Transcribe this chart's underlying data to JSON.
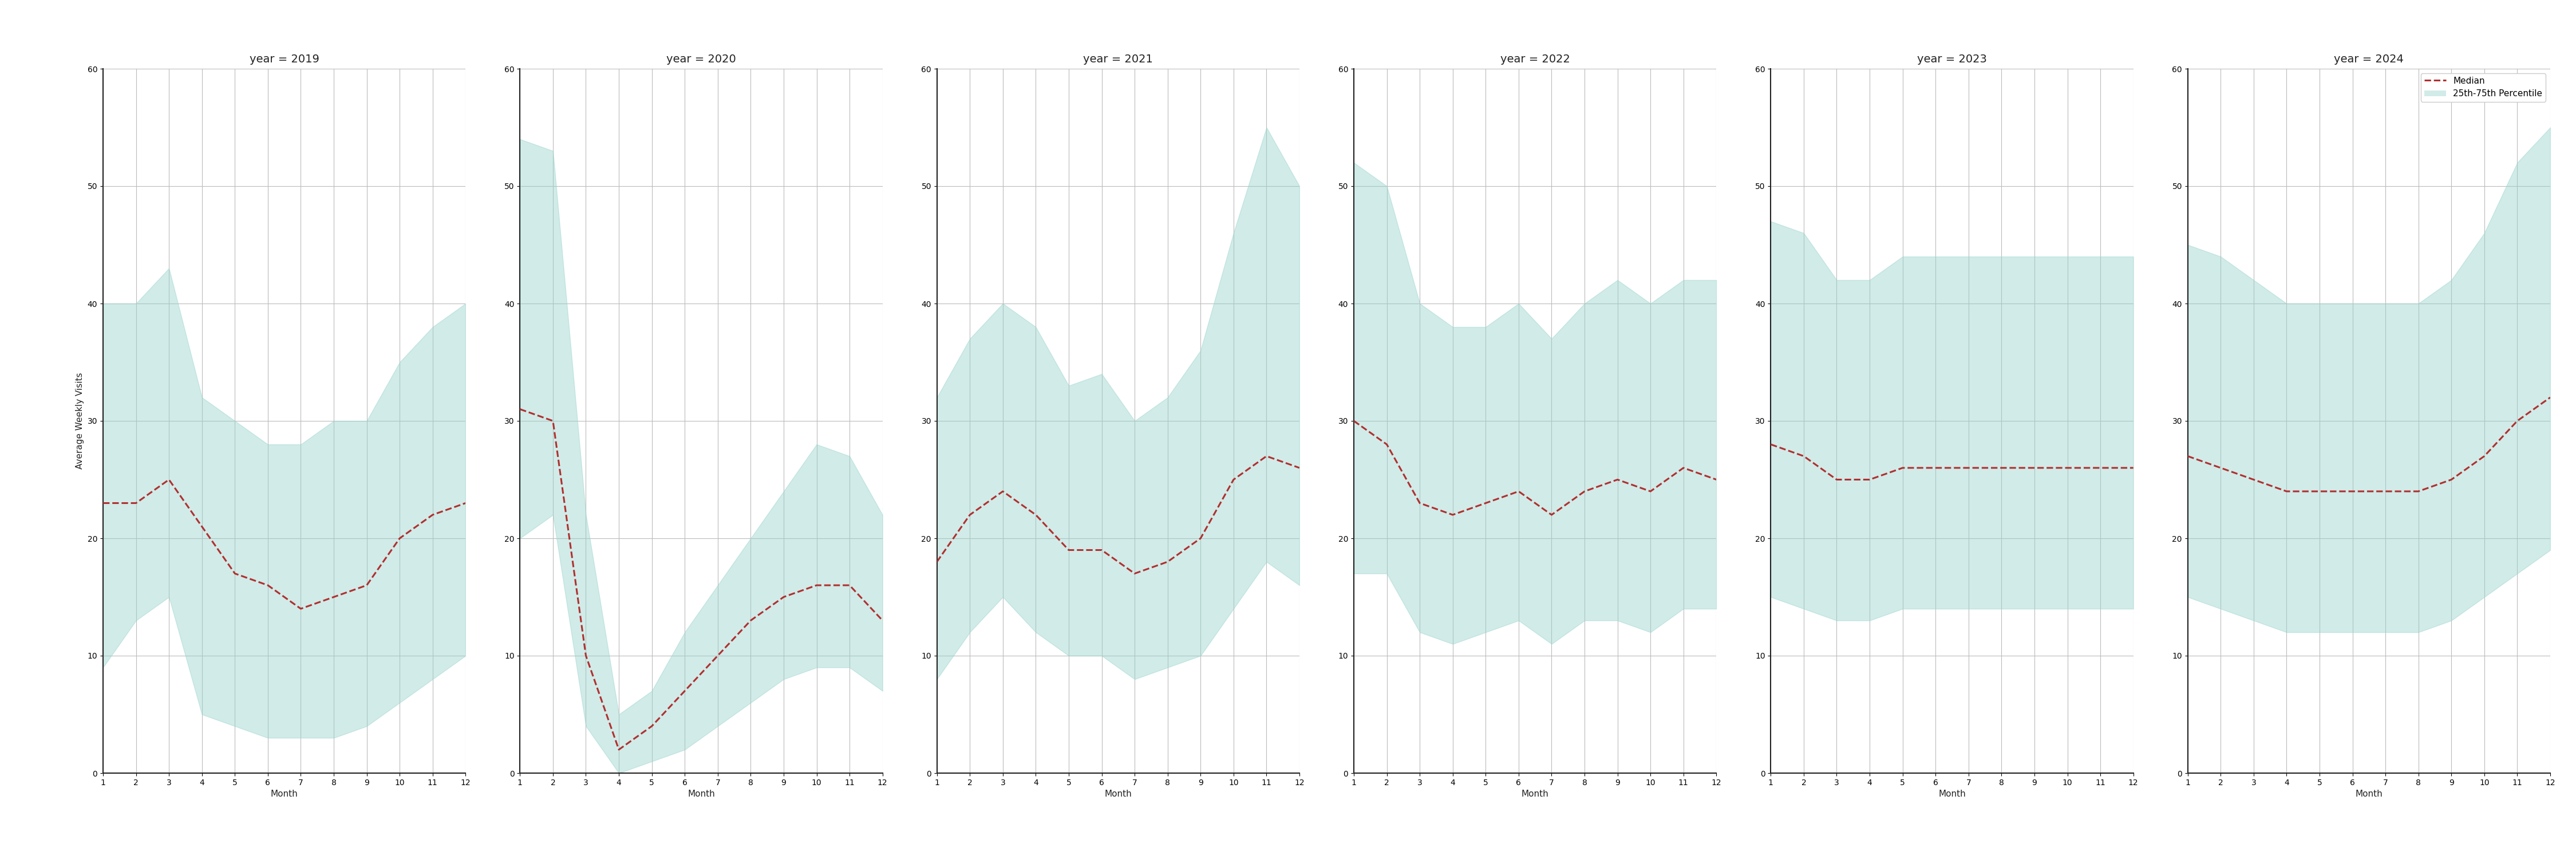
{
  "years": [
    2019,
    2020,
    2021,
    2022,
    2023,
    2024
  ],
  "months": [
    1,
    2,
    3,
    4,
    5,
    6,
    7,
    8,
    9,
    10,
    11,
    12
  ],
  "median": {
    "2019": [
      23,
      23,
      25,
      21,
      17,
      16,
      14,
      15,
      16,
      20,
      22,
      23
    ],
    "2020": [
      31,
      30,
      10,
      2,
      4,
      7,
      10,
      13,
      15,
      16,
      16,
      13
    ],
    "2021": [
      18,
      22,
      24,
      22,
      19,
      19,
      17,
      18,
      20,
      25,
      27,
      26
    ],
    "2022": [
      30,
      28,
      23,
      22,
      23,
      24,
      22,
      24,
      25,
      24,
      26,
      25
    ],
    "2023": [
      28,
      27,
      25,
      25,
      26,
      26,
      26,
      26,
      26,
      26,
      26,
      26
    ],
    "2024": [
      27,
      26,
      25,
      24,
      24,
      24,
      24,
      24,
      25,
      27,
      30,
      32
    ]
  },
  "p25": {
    "2019": [
      9,
      13,
      15,
      5,
      4,
      3,
      3,
      3,
      4,
      6,
      8,
      10
    ],
    "2020": [
      20,
      22,
      4,
      0,
      1,
      2,
      4,
      6,
      8,
      9,
      9,
      7
    ],
    "2021": [
      8,
      12,
      15,
      12,
      10,
      10,
      8,
      9,
      10,
      14,
      18,
      16
    ],
    "2022": [
      17,
      17,
      12,
      11,
      12,
      13,
      11,
      13,
      13,
      12,
      14,
      14
    ],
    "2023": [
      15,
      14,
      13,
      13,
      14,
      14,
      14,
      14,
      14,
      14,
      14,
      14
    ],
    "2024": [
      15,
      14,
      13,
      12,
      12,
      12,
      12,
      12,
      13,
      15,
      17,
      19
    ]
  },
  "p75": {
    "2019": [
      40,
      40,
      43,
      32,
      30,
      28,
      28,
      30,
      30,
      35,
      38,
      40
    ],
    "2020": [
      54,
      53,
      22,
      5,
      7,
      12,
      16,
      20,
      24,
      28,
      27,
      22
    ],
    "2021": [
      32,
      37,
      40,
      38,
      33,
      34,
      30,
      32,
      36,
      46,
      55,
      50
    ],
    "2022": [
      52,
      50,
      40,
      38,
      38,
      40,
      37,
      40,
      42,
      40,
      42,
      42
    ],
    "2023": [
      47,
      46,
      42,
      42,
      44,
      44,
      44,
      44,
      44,
      44,
      44,
      44
    ],
    "2024": [
      45,
      44,
      42,
      40,
      40,
      40,
      40,
      40,
      42,
      46,
      52,
      55
    ]
  },
  "ylim": [
    0,
    60
  ],
  "yticks": [
    0,
    10,
    20,
    30,
    40,
    50,
    60
  ],
  "fill_color": "#99d4cc",
  "fill_alpha": 0.45,
  "line_color": "#b03030",
  "line_style": "--",
  "line_width": 2.2,
  "bg_color": "#ffffff",
  "grid_color": "#bbbbbb",
  "ylabel": "Average Weekly Visits",
  "xlabel": "Month",
  "title_fontsize": 14,
  "label_fontsize": 11,
  "tick_fontsize": 10,
  "legend_fontsize": 11
}
